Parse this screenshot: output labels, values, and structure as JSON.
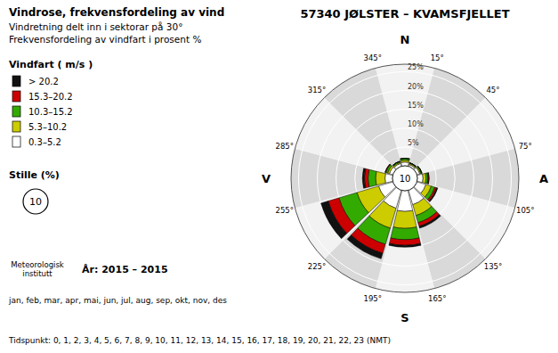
{
  "chart_data": {
    "type": "windrose",
    "title": "57340 JØLSTER – KVAMSFJELLET",
    "subtitle": [
      "Vindrose, frekvensfordeling av vind",
      "Vindretning delt inn i sektorar på 30°",
      "Frekvensfordeling av vindfart i prosent %"
    ],
    "legend_title": "Vindfart ( m/s )",
    "x": [
      0,
      30,
      60,
      90,
      120,
      150,
      180,
      210,
      240,
      270,
      300,
      330
    ],
    "xlim": [
      0,
      360
    ],
    "xticks": [
      {
        "value": 345,
        "label": "345°"
      },
      {
        "value": 15,
        "label": "15°"
      },
      {
        "value": 45,
        "label": "45°"
      },
      {
        "value": 75,
        "label": "75°"
      },
      {
        "value": 105,
        "label": "105°"
      },
      {
        "value": 135,
        "label": "135°"
      },
      {
        "value": 165,
        "label": "165°"
      },
      {
        "value": 195,
        "label": "195°"
      },
      {
        "value": 225,
        "label": "225°"
      },
      {
        "value": 255,
        "label": "255°"
      },
      {
        "value": 285,
        "label": "285°"
      },
      {
        "value": 315,
        "label": "315°"
      }
    ],
    "series": [
      {
        "name": "> 20.2",
        "color": "#111111",
        "values": [
          0.0,
          0.0,
          0.0,
          0.0,
          0.3,
          0.5,
          0.5,
          1.5,
          2.0,
          0.5,
          0.0,
          0.0
        ]
      },
      {
        "name": "15.3–20.2",
        "color": "#cc0000",
        "values": [
          0.0,
          0.0,
          0.0,
          0.3,
          0.5,
          1.0,
          1.5,
          2.5,
          3.0,
          1.0,
          0.2,
          0.0
        ]
      },
      {
        "name": "10.3–15.2",
        "color": "#33aa00",
        "values": [
          0.5,
          0.2,
          0.3,
          0.5,
          1.0,
          2.0,
          3.0,
          4.5,
          5.0,
          2.0,
          0.5,
          0.3
        ]
      },
      {
        "name": "5.3–10.2",
        "color": "#cccc00",
        "values": [
          0.5,
          0.3,
          0.3,
          0.8,
          1.5,
          3.0,
          4.5,
          5.5,
          6.0,
          2.5,
          0.5,
          0.3
        ]
      },
      {
        "name": "0.3–5.2",
        "color": "#ffffff",
        "values": [
          1.0,
          0.5,
          0.8,
          1.5,
          2.5,
          4.0,
          5.5,
          5.0,
          4.0,
          2.0,
          1.0,
          0.8
        ]
      }
    ],
    "stacked": true,
    "grid": true,
    "ylim": [
      0,
      27
    ],
    "yticks": [
      {
        "value": 5,
        "label": "5%"
      },
      {
        "value": 10,
        "label": "10%"
      },
      {
        "value": 15,
        "label": "15%"
      },
      {
        "value": 20,
        "label": "20%"
      },
      {
        "value": 25,
        "label": "25%"
      }
    ],
    "annotations": [
      {
        "text": "N",
        "x": 0
      },
      {
        "text": "A",
        "x": 90
      },
      {
        "text": "S",
        "x": 180
      },
      {
        "text": "V",
        "x": 270
      }
    ],
    "calm_label": "Stille (%)",
    "calm": 10,
    "source": [
      "Meteorologisk",
      "institutt"
    ],
    "footer": [
      "År: 2015 – 2015",
      "jan, feb, mar, apr, mai, jun, jul, aug, sep, okt, nov, des",
      "Tidspunkt: 0, 1, 2, 3, 4, 5, 6, 7, 8, 9, 10, 11, 12, 13, 14, 15, 16, 17, 18, 19, 20, 21, 22, 23 (NMT)"
    ]
  }
}
